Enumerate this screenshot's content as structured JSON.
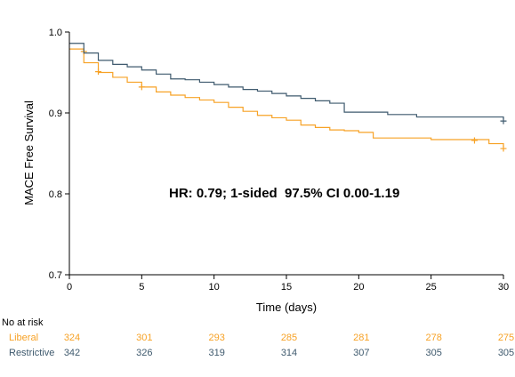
{
  "chart_data": {
    "type": "line",
    "title": "",
    "xlabel": "Time (days)",
    "ylabel": "MACE Free Survival",
    "xlim": [
      0,
      30
    ],
    "ylim": [
      0.7,
      1.0
    ],
    "x_ticks": [
      0,
      5,
      10,
      15,
      20,
      25,
      30
    ],
    "y_ticks": [
      0.7,
      0.8,
      0.9,
      1.0
    ],
    "x_tick_labels": [
      "0",
      "5",
      "10",
      "15",
      "20",
      "25",
      "30"
    ],
    "y_tick_labels": [
      "0.7",
      "0.8",
      "0.9",
      "1.0"
    ],
    "grid": false,
    "annotation": "HR: 0.79; 1-sided  97.5% CI 0.00-1.19",
    "series": [
      {
        "name": "Liberal",
        "color": "#f7a226",
        "step": [
          [
            0,
            0.979
          ],
          [
            1,
            0.962
          ],
          [
            2,
            0.95
          ],
          [
            3,
            0.944
          ],
          [
            4,
            0.938
          ],
          [
            5,
            0.932
          ],
          [
            6,
            0.926
          ],
          [
            7,
            0.922
          ],
          [
            8,
            0.919
          ],
          [
            9,
            0.916
          ],
          [
            10,
            0.913
          ],
          [
            11,
            0.907
          ],
          [
            12,
            0.902
          ],
          [
            13,
            0.897
          ],
          [
            14,
            0.894
          ],
          [
            15,
            0.891
          ],
          [
            16,
            0.885
          ],
          [
            17,
            0.882
          ],
          [
            18,
            0.879
          ],
          [
            19,
            0.878
          ],
          [
            20,
            0.876
          ],
          [
            21,
            0.869
          ],
          [
            25,
            0.867
          ],
          [
            29,
            0.862
          ],
          [
            30,
            0.858
          ]
        ],
        "censor": [
          [
            1,
            0.976
          ],
          [
            2,
            0.951
          ],
          [
            5,
            0.932
          ],
          [
            28,
            0.866
          ],
          [
            30,
            0.856
          ]
        ]
      },
      {
        "name": "Restrictive",
        "color": "#3f5a6e",
        "step": [
          [
            0,
            0.986
          ],
          [
            1,
            0.974
          ],
          [
            2,
            0.965
          ],
          [
            3,
            0.96
          ],
          [
            4,
            0.957
          ],
          [
            5,
            0.953
          ],
          [
            6,
            0.948
          ],
          [
            7,
            0.942
          ],
          [
            8,
            0.941
          ],
          [
            9,
            0.938
          ],
          [
            10,
            0.935
          ],
          [
            11,
            0.932
          ],
          [
            12,
            0.929
          ],
          [
            13,
            0.927
          ],
          [
            14,
            0.924
          ],
          [
            15,
            0.921
          ],
          [
            16,
            0.918
          ],
          [
            17,
            0.915
          ],
          [
            18,
            0.912
          ],
          [
            19,
            0.901
          ],
          [
            22,
            0.898
          ],
          [
            24,
            0.895
          ],
          [
            30,
            0.892
          ]
        ],
        "censor": [
          [
            30,
            0.89
          ]
        ]
      }
    ]
  },
  "risk_table": {
    "header": "No at risk",
    "rows": [
      {
        "label": "Liberal",
        "color": "#f7a226",
        "values": [
          "324",
          "301",
          "293",
          "285",
          "281",
          "278",
          "275"
        ]
      },
      {
        "label": "Restrictive",
        "color": "#3f5a6e",
        "values": [
          "342",
          "326",
          "319",
          "314",
          "307",
          "305",
          "305"
        ]
      }
    ]
  }
}
